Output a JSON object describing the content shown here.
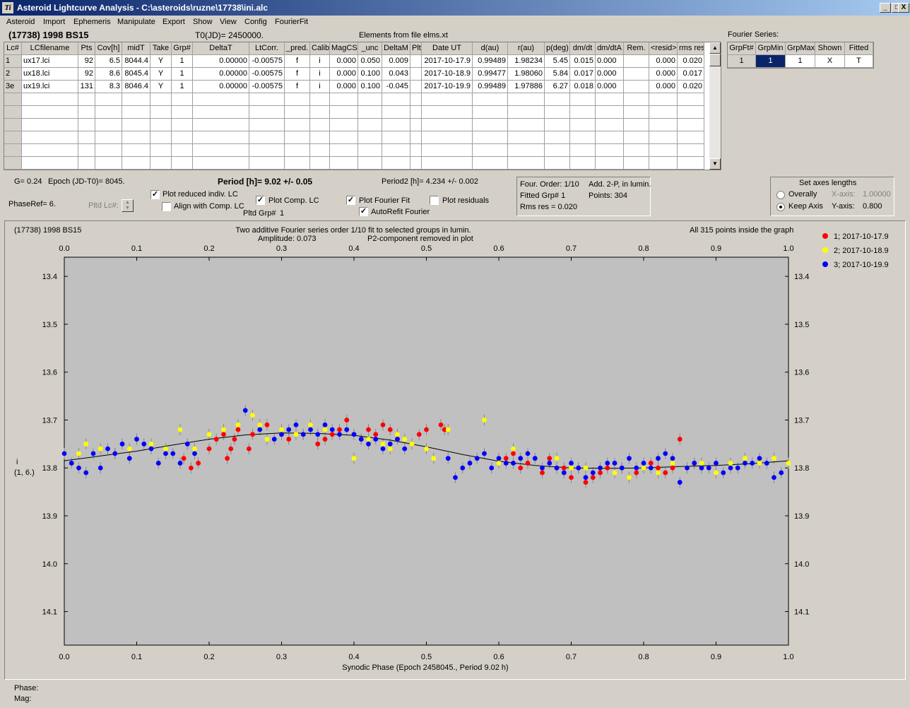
{
  "window": {
    "title": "Asteroid Lightcurve Analysis - C:\\asteroids\\ruzne\\17738\\ini.alc",
    "buttons": [
      "_",
      "□",
      "X"
    ]
  },
  "menu": [
    "Asteroid",
    "Import",
    "Ephemeris",
    "Manipulate",
    "Export",
    "Show",
    "View",
    "Config",
    "FourierFit"
  ],
  "header": {
    "asteroid": "(17738) 1998 BS15",
    "t0": "T0(JD)= 2450000.",
    "elements": "Elements from file elms.xt",
    "fourier_series_label": "Fourier Series:"
  },
  "lc_table": {
    "columns": [
      "Lc#",
      "LCfilename",
      "Pts",
      "Cov[h]",
      "midT",
      "Take",
      "Grp#",
      "DeltaT",
      "LtCorr.",
      "_pred.",
      "Calib",
      "MagCS",
      "_unc",
      "DeltaM",
      "Plt",
      "Date UT",
      "d(au)",
      "r(au)",
      "p(deg)",
      "dm/dt",
      "dm/dtA",
      "Rem.",
      "<resid>",
      "rms res"
    ],
    "rows": [
      [
        "1",
        "ux17.lci",
        "92",
        "6.5",
        "8044.4",
        "Y",
        "1",
        "0.00000",
        "-0.00575",
        "f",
        "i",
        "0.000",
        "0.050",
        "0.009",
        "",
        "2017-10-17.9",
        "0.99489",
        "1.98234",
        "5.45",
        "0.015",
        "0.000",
        "",
        "0.000",
        "0.020"
      ],
      [
        "2",
        "ux18.lci",
        "92",
        "8.6",
        "8045.4",
        "Y",
        "1",
        "0.00000",
        "-0.00575",
        "f",
        "i",
        "0.000",
        "0.100",
        "0.043",
        "",
        "2017-10-18.9",
        "0.99477",
        "1.98060",
        "5.84",
        "0.017",
        "0.000",
        "",
        "0.000",
        "0.017"
      ],
      [
        "3e",
        "ux19.lci",
        "131",
        "8.3",
        "8046.4",
        "Y",
        "1",
        "0.00000",
        "-0.00575",
        "f",
        "i",
        "0.000",
        "0.100",
        "-0.045",
        "",
        "2017-10-19.9",
        "0.99489",
        "1.97886",
        "6.27",
        "0.018",
        "0.000",
        "",
        "0.000",
        "0.020"
      ]
    ]
  },
  "fourier_table": {
    "columns": [
      "GrpFt#",
      "GrpMin",
      "GrpMax",
      "Shown",
      "Fitted"
    ],
    "row": [
      "1",
      "1",
      "1",
      "X",
      "T"
    ]
  },
  "params": {
    "g": "G= 0.24",
    "epoch": "Epoch (JD-T0)= 8045.",
    "period": "Period [h]= 9.02 +/- 0.05",
    "period2": "Period2 [h]= 4.234 +/- 0.002",
    "phaseref": "PhaseRef= 6.",
    "pltd_lc": "Pltd Lc#:",
    "pltd_grp": "Pltd Grp#",
    "pltd_grp_val": "1",
    "plot_reduced": "Plot reduced indiv. LC",
    "align": "Align with Comp. LC",
    "plot_comp": "Plot Comp. LC",
    "plot_fourier": "Plot Fourier Fit",
    "plot_residuals": "Plot residuals",
    "autorefit": "AutoRefit Fourier",
    "four_order": "Four. Order:  1/10",
    "add2p": "Add. 2-P, in lumin.",
    "fitted_grp": "Fitted Grp# 1",
    "points": "Points: 304",
    "rms": "Rms res      = 0.020",
    "axes_title": "Set axes lengths",
    "overally": "Overally",
    "keep_axis": "Keep Axis",
    "xaxis_lbl": "X-axis:",
    "xaxis_val": "1.00000",
    "yaxis_lbl": "Y-axis:",
    "yaxis_val": "0.800"
  },
  "checks": {
    "plot_reduced": "✓",
    "align": "",
    "plot_comp": "✓",
    "plot_fourier": "✓",
    "plot_residuals": "",
    "autorefit": "✓"
  },
  "plot": {
    "asteroid": "(17738) 1998 BS15",
    "title1": "Two additive Fourier series order 1/10 fit to selected groups in lumin.",
    "title2": "Amplitude: 0.073",
    "title3": "P2-component removed in plot",
    "points_info": "All 315 points inside the graph",
    "ylabel1": "i",
    "ylabel2": "(1, 6.)",
    "xlabel": "Synodic Phase (Epoch 2458045., Period 9.02 h)",
    "phase_lbl": "Phase:",
    "mag_lbl": "Mag:"
  },
  "chart_data": {
    "type": "scatter",
    "title": "Two additive Fourier series order 1/10 fit to selected groups in lumin.",
    "xlabel": "Synodic Phase (Epoch 2458045., Period 9.02 h)",
    "ylabel": "i (1, 6.)",
    "xlim": [
      0.0,
      1.0
    ],
    "ylim": [
      14.17,
      13.36
    ],
    "x_ticks": [
      "0.0",
      "0.1",
      "0.2",
      "0.3",
      "0.4",
      "0.5",
      "0.6",
      "0.7",
      "0.8",
      "0.9",
      "1.0"
    ],
    "y_ticks": [
      "13.4",
      "13.5",
      "13.6",
      "13.7",
      "13.8",
      "13.9",
      "14.0",
      "14.1"
    ],
    "legend_position": "right",
    "series": [
      {
        "name": "1; 2017-10-17.9",
        "color": "#ff0000",
        "x": [
          0.165,
          0.175,
          0.185,
          0.2,
          0.21,
          0.22,
          0.225,
          0.23,
          0.235,
          0.24,
          0.255,
          0.26,
          0.28,
          0.3,
          0.31,
          0.33,
          0.35,
          0.36,
          0.37,
          0.38,
          0.39,
          0.4,
          0.41,
          0.42,
          0.43,
          0.44,
          0.45,
          0.46,
          0.48,
          0.49,
          0.5,
          0.52,
          0.525,
          0.61,
          0.62,
          0.63,
          0.64,
          0.66,
          0.67,
          0.68,
          0.69,
          0.7,
          0.71,
          0.72,
          0.73,
          0.74,
          0.75,
          0.77,
          0.79,
          0.8,
          0.81,
          0.82,
          0.83,
          0.84,
          0.85,
          0.86,
          0.87
        ],
        "y": [
          13.78,
          13.8,
          13.79,
          13.76,
          13.74,
          13.73,
          13.78,
          13.76,
          13.74,
          13.72,
          13.76,
          13.73,
          13.71,
          13.73,
          13.74,
          13.73,
          13.75,
          13.74,
          13.73,
          13.72,
          13.7,
          13.73,
          13.74,
          13.72,
          13.73,
          13.71,
          13.72,
          13.74,
          13.75,
          13.73,
          13.72,
          13.71,
          13.72,
          13.78,
          13.77,
          13.8,
          13.79,
          13.81,
          13.78,
          13.8,
          13.8,
          13.82,
          13.8,
          13.83,
          13.82,
          13.81,
          13.8,
          13.8,
          13.81,
          13.8,
          13.79,
          13.8,
          13.81,
          13.8,
          13.74,
          13.8,
          13.79
        ]
      },
      {
        "name": "2; 2017-10-18.9",
        "color": "#ffff00",
        "x": [
          0.0,
          0.02,
          0.03,
          0.05,
          0.07,
          0.09,
          0.12,
          0.14,
          0.16,
          0.18,
          0.2,
          0.22,
          0.24,
          0.26,
          0.27,
          0.28,
          0.3,
          0.32,
          0.34,
          0.36,
          0.38,
          0.4,
          0.42,
          0.44,
          0.45,
          0.46,
          0.47,
          0.48,
          0.5,
          0.51,
          0.53,
          0.58,
          0.6,
          0.62,
          0.64,
          0.68,
          0.7,
          0.72,
          0.74,
          0.76,
          0.78,
          0.8,
          0.82,
          0.84,
          0.86,
          0.88,
          0.9,
          0.92,
          0.94,
          0.96,
          0.98,
          1.0
        ],
        "y": [
          13.77,
          13.77,
          13.75,
          13.76,
          13.77,
          13.76,
          13.75,
          13.76,
          13.72,
          13.76,
          13.73,
          13.72,
          13.71,
          13.69,
          13.71,
          13.74,
          13.72,
          13.73,
          13.71,
          13.72,
          13.73,
          13.78,
          13.74,
          13.75,
          13.76,
          13.73,
          13.74,
          13.75,
          13.76,
          13.78,
          13.72,
          13.7,
          13.79,
          13.76,
          13.77,
          13.78,
          13.8,
          13.8,
          13.8,
          13.81,
          13.82,
          13.8,
          13.81,
          13.79,
          13.8,
          13.79,
          13.81,
          13.79,
          13.78,
          13.79,
          13.78,
          13.79
        ]
      },
      {
        "name": "3; 2017-10-19.9",
        "color": "#0000ff",
        "x": [
          0.0,
          0.01,
          0.02,
          0.03,
          0.04,
          0.05,
          0.06,
          0.07,
          0.08,
          0.09,
          0.1,
          0.11,
          0.12,
          0.13,
          0.14,
          0.15,
          0.16,
          0.17,
          0.18,
          0.25,
          0.27,
          0.29,
          0.3,
          0.31,
          0.32,
          0.33,
          0.34,
          0.35,
          0.36,
          0.37,
          0.38,
          0.39,
          0.4,
          0.41,
          0.42,
          0.43,
          0.44,
          0.45,
          0.46,
          0.47,
          0.53,
          0.54,
          0.55,
          0.56,
          0.57,
          0.58,
          0.59,
          0.6,
          0.61,
          0.62,
          0.63,
          0.64,
          0.65,
          0.66,
          0.67,
          0.68,
          0.69,
          0.7,
          0.71,
          0.72,
          0.73,
          0.74,
          0.75,
          0.76,
          0.77,
          0.78,
          0.79,
          0.8,
          0.81,
          0.82,
          0.83,
          0.84,
          0.85,
          0.86,
          0.87,
          0.88,
          0.89,
          0.9,
          0.91,
          0.92,
          0.93,
          0.94,
          0.95,
          0.96,
          0.97,
          0.98,
          0.99
        ],
        "y": [
          13.77,
          13.79,
          13.8,
          13.81,
          13.77,
          13.8,
          13.76,
          13.77,
          13.75,
          13.78,
          13.74,
          13.75,
          13.76,
          13.79,
          13.77,
          13.77,
          13.79,
          13.75,
          13.77,
          13.68,
          13.72,
          13.74,
          13.73,
          13.72,
          13.71,
          13.73,
          13.72,
          13.73,
          13.71,
          13.72,
          13.73,
          13.72,
          13.73,
          13.74,
          13.75,
          13.74,
          13.76,
          13.75,
          13.74,
          13.76,
          13.78,
          13.82,
          13.8,
          13.79,
          13.78,
          13.77,
          13.8,
          13.78,
          13.79,
          13.79,
          13.78,
          13.77,
          13.78,
          13.8,
          13.79,
          13.8,
          13.81,
          13.79,
          13.8,
          13.82,
          13.81,
          13.8,
          13.79,
          13.79,
          13.8,
          13.78,
          13.8,
          13.79,
          13.8,
          13.78,
          13.77,
          13.78,
          13.83,
          13.8,
          13.79,
          13.8,
          13.8,
          13.79,
          13.81,
          13.8,
          13.8,
          13.79,
          13.79,
          13.78,
          13.79,
          13.82,
          13.81
        ]
      }
    ],
    "fit": {
      "x": [
        0.0,
        0.05,
        0.1,
        0.15,
        0.2,
        0.25,
        0.3,
        0.35,
        0.4,
        0.45,
        0.5,
        0.55,
        0.6,
        0.65,
        0.7,
        0.75,
        0.8,
        0.85,
        0.9,
        0.95,
        1.0
      ],
      "y": [
        13.785,
        13.775,
        13.765,
        13.752,
        13.74,
        13.731,
        13.727,
        13.728,
        13.732,
        13.742,
        13.756,
        13.772,
        13.786,
        13.795,
        13.8,
        13.801,
        13.8,
        13.797,
        13.795,
        13.791,
        13.785
      ]
    }
  }
}
